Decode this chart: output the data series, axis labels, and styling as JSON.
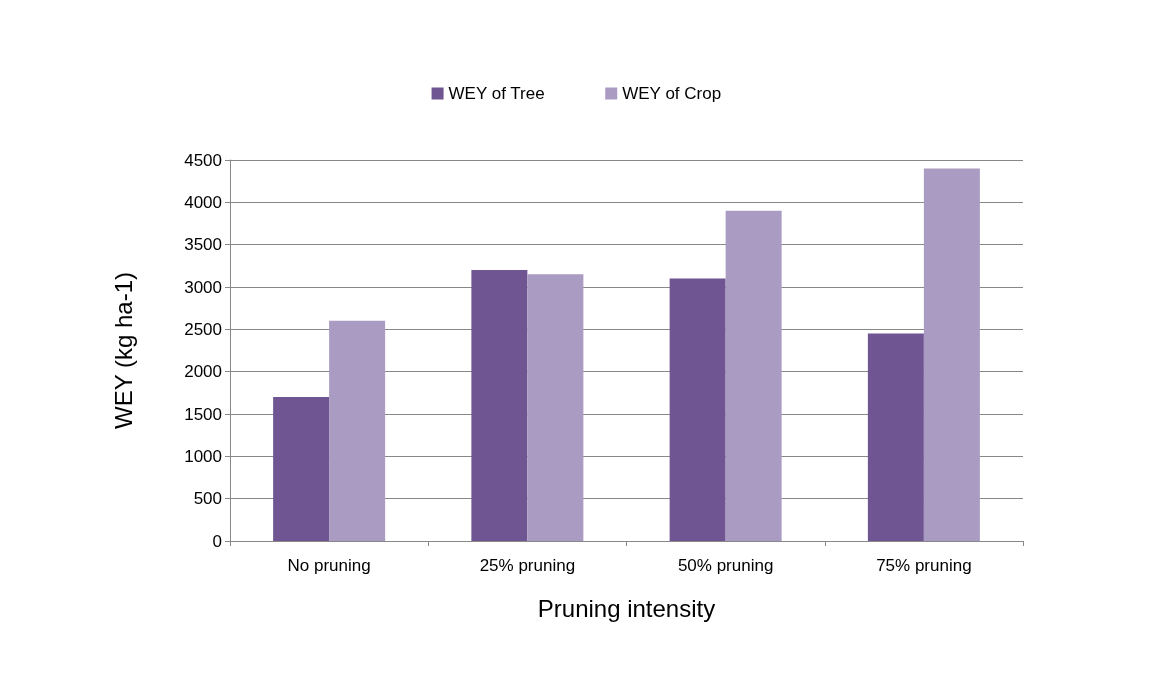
{
  "chart_data": {
    "type": "bar",
    "xlabel": "Pruning intensity",
    "ylabel": "WEY (kg ha-1)",
    "categories": [
      "No pruning",
      "25% pruning",
      "50% pruning",
      "75% pruning"
    ],
    "series": [
      {
        "name": "WEY of Tree",
        "color": "#6f5592",
        "values": [
          1700,
          3200,
          3100,
          2450
        ]
      },
      {
        "name": "WEY of Crop",
        "color": "#a99bc2",
        "values": [
          2600,
          3150,
          3900,
          4400
        ]
      }
    ],
    "ylim": [
      0,
      4500
    ],
    "yticks": [
      0,
      500,
      1000,
      1500,
      2000,
      2500,
      3000,
      3500,
      4000,
      4500
    ],
    "grid": "y",
    "legend": "top"
  }
}
